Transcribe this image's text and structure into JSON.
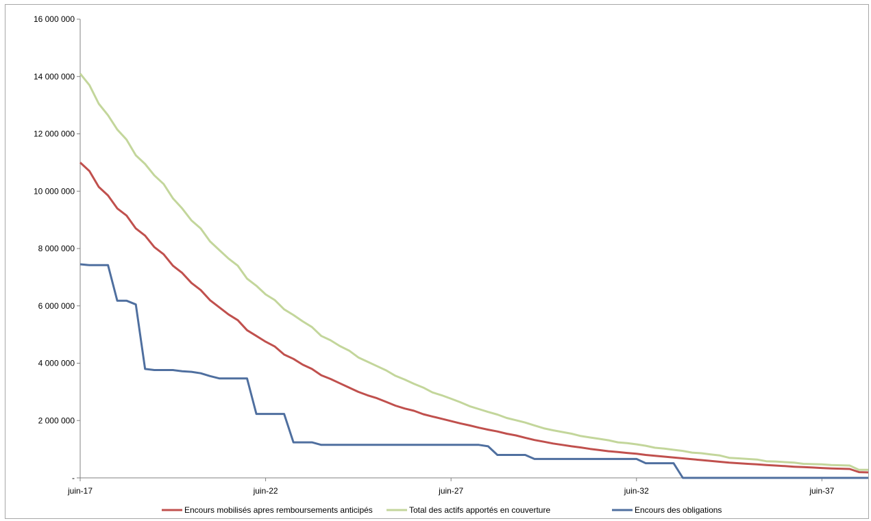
{
  "chart_data": {
    "type": "line",
    "title": "",
    "xlabel": "",
    "ylabel": "",
    "x_tick_labels": [
      "juin-17",
      "juin-22",
      "juin-27",
      "juin-32",
      "juin-37"
    ],
    "x_ticks": [
      2017.5,
      2022.5,
      2027.5,
      2032.5,
      2037.5
    ],
    "xlim": [
      2017.5,
      2038.75
    ],
    "y_tick_labels": [
      "-",
      "2 000 000",
      "4 000 000",
      "6 000 000",
      "8 000 000",
      "10 000 000",
      "12 000 000",
      "14 000 000",
      "16 000 000"
    ],
    "y_ticks": [
      0,
      2000000,
      4000000,
      6000000,
      8000000,
      10000000,
      12000000,
      14000000,
      16000000
    ],
    "ylim": [
      0,
      16000000
    ],
    "grid": false,
    "legend_position": "bottom",
    "series": [
      {
        "name": "Encours mobilisés apres remboursements anticipés",
        "color": "#c0504d",
        "points": [
          [
            2017.5,
            11000000
          ],
          [
            2017.75,
            10700000
          ],
          [
            2018.0,
            10150000
          ],
          [
            2018.25,
            9850000
          ],
          [
            2018.5,
            9400000
          ],
          [
            2018.75,
            9150000
          ],
          [
            2019.0,
            8700000
          ],
          [
            2019.25,
            8450000
          ],
          [
            2019.5,
            8050000
          ],
          [
            2019.75,
            7800000
          ],
          [
            2020.0,
            7400000
          ],
          [
            2020.25,
            7150000
          ],
          [
            2020.5,
            6800000
          ],
          [
            2020.75,
            6550000
          ],
          [
            2021.0,
            6200000
          ],
          [
            2021.25,
            5950000
          ],
          [
            2021.5,
            5700000
          ],
          [
            2021.75,
            5500000
          ],
          [
            2022.0,
            5150000
          ],
          [
            2022.25,
            4950000
          ],
          [
            2022.5,
            4750000
          ],
          [
            2022.75,
            4580000
          ],
          [
            2023.0,
            4300000
          ],
          [
            2023.25,
            4150000
          ],
          [
            2023.5,
            3950000
          ],
          [
            2023.75,
            3800000
          ],
          [
            2024.0,
            3580000
          ],
          [
            2024.25,
            3450000
          ],
          [
            2024.5,
            3300000
          ],
          [
            2024.75,
            3150000
          ],
          [
            2025.0,
            3000000
          ],
          [
            2025.25,
            2880000
          ],
          [
            2025.5,
            2780000
          ],
          [
            2025.75,
            2650000
          ],
          [
            2026.0,
            2520000
          ],
          [
            2026.25,
            2420000
          ],
          [
            2026.5,
            2340000
          ],
          [
            2026.75,
            2220000
          ],
          [
            2027.0,
            2140000
          ],
          [
            2027.25,
            2060000
          ],
          [
            2027.5,
            1980000
          ],
          [
            2027.75,
            1900000
          ],
          [
            2028.0,
            1830000
          ],
          [
            2028.25,
            1750000
          ],
          [
            2028.5,
            1680000
          ],
          [
            2028.75,
            1620000
          ],
          [
            2029.0,
            1540000
          ],
          [
            2029.25,
            1480000
          ],
          [
            2029.5,
            1400000
          ],
          [
            2029.75,
            1320000
          ],
          [
            2030.0,
            1260000
          ],
          [
            2030.25,
            1200000
          ],
          [
            2030.5,
            1150000
          ],
          [
            2030.75,
            1100000
          ],
          [
            2031.0,
            1060000
          ],
          [
            2031.25,
            1010000
          ],
          [
            2031.5,
            970000
          ],
          [
            2031.75,
            930000
          ],
          [
            2032.0,
            900000
          ],
          [
            2032.25,
            870000
          ],
          [
            2032.5,
            840000
          ],
          [
            2032.75,
            800000
          ],
          [
            2033.0,
            770000
          ],
          [
            2033.25,
            740000
          ],
          [
            2033.5,
            710000
          ],
          [
            2033.75,
            680000
          ],
          [
            2034.0,
            650000
          ],
          [
            2034.25,
            620000
          ],
          [
            2034.5,
            590000
          ],
          [
            2034.75,
            560000
          ],
          [
            2035.0,
            530000
          ],
          [
            2035.25,
            510000
          ],
          [
            2035.5,
            490000
          ],
          [
            2035.75,
            470000
          ],
          [
            2036.0,
            450000
          ],
          [
            2036.25,
            430000
          ],
          [
            2036.5,
            410000
          ],
          [
            2036.75,
            390000
          ],
          [
            2037.0,
            375000
          ],
          [
            2037.25,
            360000
          ],
          [
            2037.5,
            345000
          ],
          [
            2037.75,
            330000
          ],
          [
            2038.0,
            320000
          ],
          [
            2038.25,
            310000
          ],
          [
            2038.5,
            200000
          ],
          [
            2038.75,
            190000
          ]
        ]
      },
      {
        "name": "Total des actifs apportés en couverture",
        "color": "#c3d69b",
        "points": [
          [
            2017.5,
            14100000
          ],
          [
            2017.75,
            13700000
          ],
          [
            2018.0,
            13050000
          ],
          [
            2018.25,
            12650000
          ],
          [
            2018.5,
            12150000
          ],
          [
            2018.75,
            11800000
          ],
          [
            2019.0,
            11250000
          ],
          [
            2019.25,
            10950000
          ],
          [
            2019.5,
            10550000
          ],
          [
            2019.75,
            10250000
          ],
          [
            2020.0,
            9750000
          ],
          [
            2020.25,
            9400000
          ],
          [
            2020.5,
            8980000
          ],
          [
            2020.75,
            8700000
          ],
          [
            2021.0,
            8250000
          ],
          [
            2021.25,
            7950000
          ],
          [
            2021.5,
            7650000
          ],
          [
            2021.75,
            7400000
          ],
          [
            2022.0,
            6950000
          ],
          [
            2022.25,
            6700000
          ],
          [
            2022.5,
            6400000
          ],
          [
            2022.75,
            6200000
          ],
          [
            2023.0,
            5880000
          ],
          [
            2023.25,
            5680000
          ],
          [
            2023.5,
            5460000
          ],
          [
            2023.75,
            5260000
          ],
          [
            2024.0,
            4950000
          ],
          [
            2024.25,
            4800000
          ],
          [
            2024.5,
            4600000
          ],
          [
            2024.75,
            4440000
          ],
          [
            2025.0,
            4200000
          ],
          [
            2025.25,
            4050000
          ],
          [
            2025.5,
            3900000
          ],
          [
            2025.75,
            3750000
          ],
          [
            2026.0,
            3560000
          ],
          [
            2026.25,
            3430000
          ],
          [
            2026.5,
            3280000
          ],
          [
            2026.75,
            3150000
          ],
          [
            2027.0,
            2980000
          ],
          [
            2027.25,
            2880000
          ],
          [
            2027.5,
            2760000
          ],
          [
            2027.75,
            2640000
          ],
          [
            2028.0,
            2500000
          ],
          [
            2028.25,
            2400000
          ],
          [
            2028.5,
            2300000
          ],
          [
            2028.75,
            2210000
          ],
          [
            2029.0,
            2090000
          ],
          [
            2029.25,
            2010000
          ],
          [
            2029.5,
            1930000
          ],
          [
            2029.75,
            1830000
          ],
          [
            2030.0,
            1730000
          ],
          [
            2030.25,
            1660000
          ],
          [
            2030.5,
            1600000
          ],
          [
            2030.75,
            1540000
          ],
          [
            2031.0,
            1460000
          ],
          [
            2031.25,
            1410000
          ],
          [
            2031.5,
            1360000
          ],
          [
            2031.75,
            1310000
          ],
          [
            2032.0,
            1240000
          ],
          [
            2032.25,
            1210000
          ],
          [
            2032.5,
            1170000
          ],
          [
            2032.75,
            1120000
          ],
          [
            2033.0,
            1050000
          ],
          [
            2033.25,
            1020000
          ],
          [
            2033.5,
            980000
          ],
          [
            2033.75,
            940000
          ],
          [
            2034.0,
            880000
          ],
          [
            2034.25,
            860000
          ],
          [
            2034.5,
            820000
          ],
          [
            2034.75,
            780000
          ],
          [
            2035.0,
            700000
          ],
          [
            2035.25,
            680000
          ],
          [
            2035.5,
            660000
          ],
          [
            2035.75,
            640000
          ],
          [
            2036.0,
            580000
          ],
          [
            2036.25,
            570000
          ],
          [
            2036.5,
            550000
          ],
          [
            2036.75,
            530000
          ],
          [
            2037.0,
            490000
          ],
          [
            2037.25,
            480000
          ],
          [
            2037.5,
            470000
          ],
          [
            2037.75,
            450000
          ],
          [
            2038.0,
            440000
          ],
          [
            2038.25,
            430000
          ],
          [
            2038.5,
            280000
          ],
          [
            2038.75,
            280000
          ]
        ]
      },
      {
        "name": "Encours des obligations",
        "color": "#4f6f9f",
        "points": [
          [
            2017.5,
            7450000
          ],
          [
            2017.75,
            7420000
          ],
          [
            2018.0,
            7420000
          ],
          [
            2018.25,
            7420000
          ],
          [
            2018.5,
            6180000
          ],
          [
            2018.75,
            6180000
          ],
          [
            2019.0,
            6050000
          ],
          [
            2019.25,
            3800000
          ],
          [
            2019.5,
            3760000
          ],
          [
            2019.75,
            3760000
          ],
          [
            2020.0,
            3760000
          ],
          [
            2020.25,
            3720000
          ],
          [
            2020.5,
            3700000
          ],
          [
            2020.75,
            3650000
          ],
          [
            2021.0,
            3550000
          ],
          [
            2021.25,
            3470000
          ],
          [
            2021.5,
            3470000
          ],
          [
            2021.75,
            3470000
          ],
          [
            2022.0,
            3470000
          ],
          [
            2022.25,
            2230000
          ],
          [
            2022.5,
            2230000
          ],
          [
            2022.75,
            2230000
          ],
          [
            2023.0,
            2230000
          ],
          [
            2023.25,
            1240000
          ],
          [
            2023.5,
            1240000
          ],
          [
            2023.75,
            1240000
          ],
          [
            2024.0,
            1150000
          ],
          [
            2024.25,
            1150000
          ],
          [
            2024.5,
            1150000
          ],
          [
            2024.75,
            1150000
          ],
          [
            2025.0,
            1150000
          ],
          [
            2025.25,
            1150000
          ],
          [
            2025.5,
            1150000
          ],
          [
            2025.75,
            1150000
          ],
          [
            2026.0,
            1150000
          ],
          [
            2026.25,
            1150000
          ],
          [
            2026.5,
            1150000
          ],
          [
            2026.75,
            1150000
          ],
          [
            2027.0,
            1150000
          ],
          [
            2027.25,
            1150000
          ],
          [
            2027.5,
            1150000
          ],
          [
            2027.75,
            1150000
          ],
          [
            2028.0,
            1150000
          ],
          [
            2028.25,
            1150000
          ],
          [
            2028.5,
            1100000
          ],
          [
            2028.75,
            800000
          ],
          [
            2029.0,
            800000
          ],
          [
            2029.25,
            800000
          ],
          [
            2029.5,
            800000
          ],
          [
            2029.75,
            660000
          ],
          [
            2030.0,
            660000
          ],
          [
            2030.25,
            660000
          ],
          [
            2030.5,
            660000
          ],
          [
            2030.75,
            660000
          ],
          [
            2031.0,
            660000
          ],
          [
            2031.25,
            660000
          ],
          [
            2031.5,
            660000
          ],
          [
            2031.75,
            660000
          ],
          [
            2032.0,
            660000
          ],
          [
            2032.25,
            660000
          ],
          [
            2032.5,
            660000
          ],
          [
            2032.75,
            510000
          ],
          [
            2033.0,
            510000
          ],
          [
            2033.25,
            510000
          ],
          [
            2033.5,
            510000
          ],
          [
            2033.75,
            0
          ],
          [
            2034.0,
            0
          ],
          [
            2034.25,
            0
          ],
          [
            2034.5,
            0
          ],
          [
            2034.75,
            0
          ],
          [
            2035.0,
            0
          ],
          [
            2035.25,
            0
          ],
          [
            2035.5,
            0
          ],
          [
            2035.75,
            0
          ],
          [
            2036.0,
            0
          ],
          [
            2036.25,
            0
          ],
          [
            2036.5,
            0
          ],
          [
            2036.75,
            0
          ],
          [
            2037.0,
            0
          ],
          [
            2037.25,
            0
          ],
          [
            2037.5,
            0
          ],
          [
            2037.75,
            0
          ],
          [
            2038.0,
            0
          ],
          [
            2038.25,
            0
          ],
          [
            2038.5,
            0
          ],
          [
            2038.75,
            0
          ]
        ]
      }
    ]
  }
}
